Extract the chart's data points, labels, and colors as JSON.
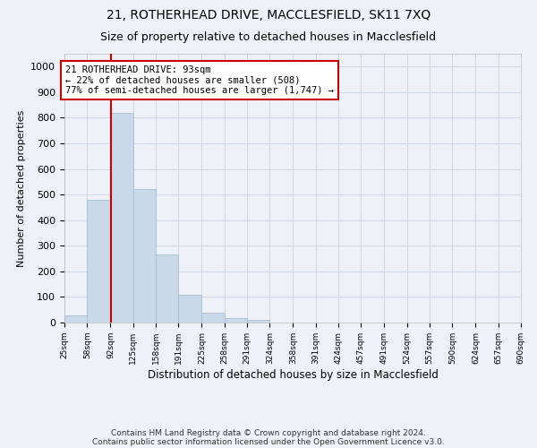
{
  "title1": "21, ROTHERHEAD DRIVE, MACCLESFIELD, SK11 7XQ",
  "title2": "Size of property relative to detached houses in Macclesfield",
  "xlabel": "Distribution of detached houses by size in Macclesfield",
  "ylabel": "Number of detached properties",
  "footnote1": "Contains HM Land Registry data © Crown copyright and database right 2024.",
  "footnote2": "Contains public sector information licensed under the Open Government Licence v3.0.",
  "annotation_line1": "21 ROTHERHEAD DRIVE: 93sqm",
  "annotation_line2": "← 22% of detached houses are smaller (508)",
  "annotation_line3": "77% of semi-detached houses are larger (1,747) →",
  "property_size": 93,
  "bin_edges": [
    25,
    58,
    92,
    125,
    158,
    191,
    225,
    258,
    291,
    324,
    358,
    391,
    424,
    457,
    491,
    524,
    557,
    590,
    624,
    657,
    690
  ],
  "bar_heights": [
    27,
    480,
    820,
    520,
    265,
    110,
    37,
    17,
    9,
    0,
    0,
    0,
    0,
    0,
    0,
    0,
    0,
    0,
    0,
    0
  ],
  "bar_color": "#c9d9ea",
  "bar_edge_color": "#a0b8cc",
  "vline_color": "#cc0000",
  "vline_x": 93,
  "annotation_box_edgecolor": "#cc0000",
  "annotation_box_facecolor": "#ffffff",
  "grid_color": "#d0d8e8",
  "bg_color": "#eef2f8",
  "ylim": [
    0,
    1050
  ],
  "yticks": [
    0,
    100,
    200,
    300,
    400,
    500,
    600,
    700,
    800,
    900,
    1000
  ]
}
